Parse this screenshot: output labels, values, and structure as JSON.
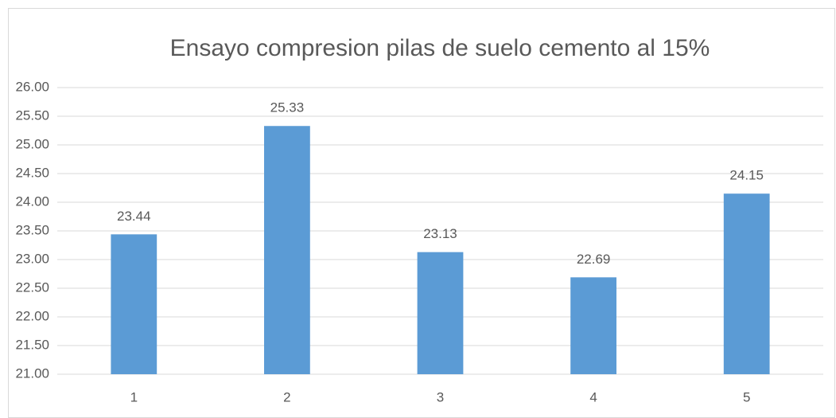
{
  "chart_data": {
    "type": "bar",
    "title": "Ensayo compresion pilas de suelo cemento al 15%",
    "categories": [
      "1",
      "2",
      "3",
      "4",
      "5"
    ],
    "values": [
      23.44,
      25.33,
      23.13,
      22.69,
      24.15
    ],
    "color": "#5b9bd5",
    "ylim": [
      21,
      26
    ],
    "yticks": [
      {
        "value": 21,
        "label": "21.00"
      },
      {
        "value": 21.5,
        "label": "21.50"
      },
      {
        "value": 22,
        "label": "22.00"
      },
      {
        "value": 22.5,
        "label": "22.50"
      },
      {
        "value": 23,
        "label": "23.00"
      },
      {
        "value": 23.5,
        "label": "23.50"
      },
      {
        "value": 24,
        "label": "24.00"
      },
      {
        "value": 24.5,
        "label": "24.50"
      },
      {
        "value": 25,
        "label": "25.00"
      },
      {
        "value": 25.5,
        "label": "25.50"
      },
      {
        "value": 26,
        "label": "26.00"
      }
    ],
    "grid": true
  }
}
